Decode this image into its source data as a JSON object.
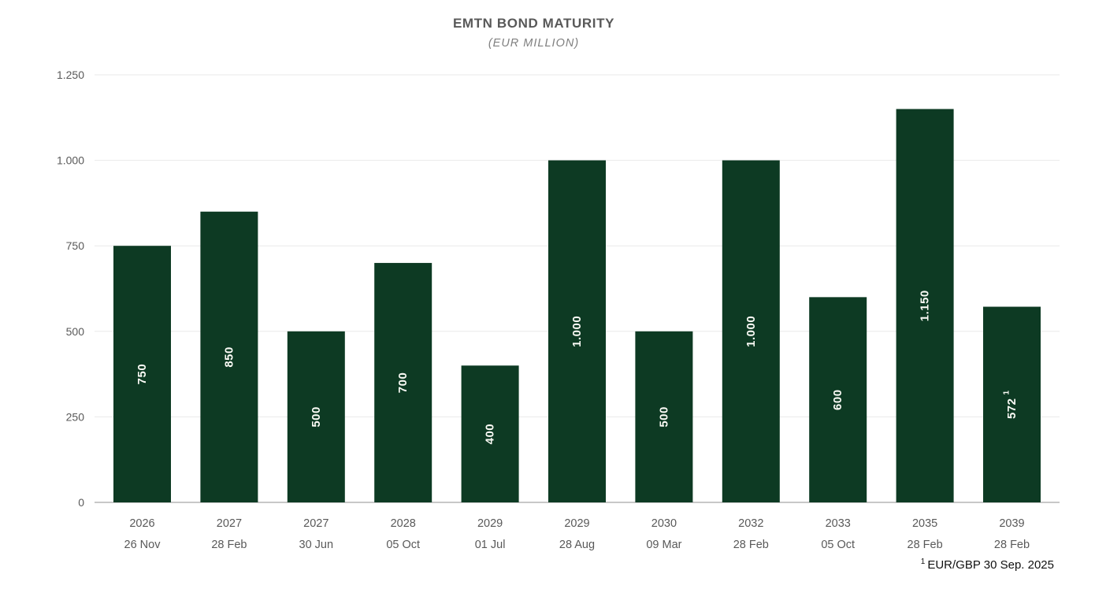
{
  "chart_data": {
    "type": "bar",
    "title": "EMTN BOND MATURITY",
    "subtitle": "(EUR MILLION)",
    "xlabel": "",
    "ylabel": "",
    "ylim": [
      0,
      1250
    ],
    "yticks": [
      0,
      250,
      500,
      750,
      1000,
      1250
    ],
    "ytick_labels": [
      "0",
      "250",
      "500",
      "750",
      "1.000",
      "1.250"
    ],
    "grid": true,
    "legend": "none",
    "bar_label_rotation": -90,
    "categories": [
      {
        "year": "2026",
        "date": "26 Nov"
      },
      {
        "year": "2027",
        "date": "28 Feb"
      },
      {
        "year": "2027",
        "date": "30 Jun"
      },
      {
        "year": "2028",
        "date": "05 Oct"
      },
      {
        "year": "2029",
        "date": "01 Jul"
      },
      {
        "year": "2029",
        "date": "28 Aug"
      },
      {
        "year": "2030",
        "date": "09 Mar"
      },
      {
        "year": "2032",
        "date": "28 Feb"
      },
      {
        "year": "2033",
        "date": "05 Oct"
      },
      {
        "year": "2035",
        "date": "28 Feb"
      },
      {
        "year": "2039",
        "date": "28 Feb"
      }
    ],
    "values": [
      750,
      850,
      500,
      700,
      400,
      1000,
      500,
      1000,
      600,
      1150,
      572
    ],
    "value_labels": [
      "750",
      "850",
      "500",
      "700",
      "400",
      "1.000",
      "500",
      "1.000",
      "600",
      "1.150",
      "572"
    ],
    "value_label_superscripts": [
      "",
      "",
      "",
      "",
      "",
      "",
      "",
      "",
      "",
      "",
      "1"
    ],
    "colors": {
      "bar": "#0d3a23",
      "bar_label": "#fbfbf6",
      "axis_text": "#595959",
      "title": "#595959",
      "subtitle": "#7f7f7f",
      "gridline": "#e9e9e9",
      "axis_line": "#a6a6a6",
      "footnote": "#111111"
    }
  },
  "footnote": {
    "superscript": "1",
    "text": "EUR/GBP 30 Sep. 2025"
  }
}
